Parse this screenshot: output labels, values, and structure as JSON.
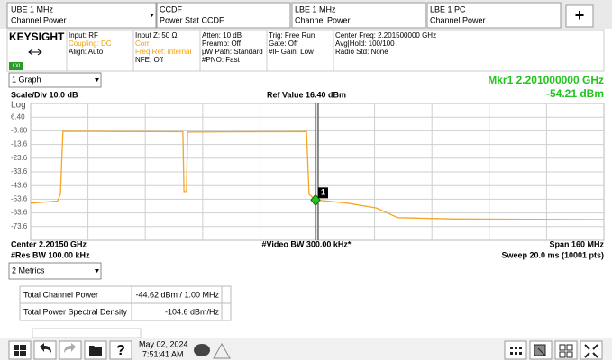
{
  "tabs": [
    {
      "line1": "UBE 1 MHz",
      "line2": "Channel Power"
    },
    {
      "line1": "CCDF",
      "line2": "Power Stat CCDF"
    },
    {
      "line1": "LBE 1 MHz",
      "line2": "Channel Power"
    },
    {
      "line1": "LBE 1 PC",
      "line2": "Channel Power"
    }
  ],
  "add_tab": "+",
  "brand": "KEYSIGHT",
  "lxi": "LXI",
  "settings": [
    [
      "Input: RF",
      "Coupling: DC",
      "Align: Auto"
    ],
    [
      "Input Z: 50 Ω",
      "Corr",
      "Freq Ref: Internal",
      "NFE: Off"
    ],
    [
      "Atten: 10 dB",
      "Preamp: Off",
      "µW Path: Standard",
      "#PNO: Fast"
    ],
    [
      "Trig: Free Run",
      "Gate: Off",
      "#IF Gain: Low"
    ],
    [
      "Center Freq: 2.201500000 GHz",
      "Avg|Hold: 100/100",
      "Radio Std: None"
    ]
  ],
  "graph": {
    "selector": "1 Graph",
    "marker_freq": "Mkr1  2.201000000 GHz",
    "scale": "Scale/Div 10.0 dB",
    "ref": "Ref Value 16.40 dBm",
    "scale_type": "Log",
    "center": "Center 2.20150 GHz",
    "video_bw": "#Video BW 300.00 kHz*",
    "span": "Span 160 MHz",
    "res_bw": "#Res BW 100.00 kHz",
    "sweep": "Sweep 20.0 ms (10001 pts)"
  },
  "chart_data": {
    "type": "line",
    "color": "#f5a623",
    "x": [
      2.1215,
      2.129,
      2.1298,
      2.1305,
      2.164,
      2.1643,
      2.165,
      2.1653,
      2.1985,
      2.1992,
      2.201,
      2.21,
      2.218,
      2.224,
      2.24,
      2.2815
    ],
    "values": [
      -56.5,
      -55,
      -50,
      -4,
      -4.3,
      -48,
      -48,
      -4.5,
      -4.2,
      -50,
      -54.21,
      -56.5,
      -60,
      -67,
      -68,
      -68.5
    ],
    "xlim": [
      2.1215,
      2.2815
    ],
    "ylim": [
      -83.6,
      16.4
    ],
    "yticks": [
      {
        "value": 6.4,
        "label": "6.40"
      },
      {
        "value": -3.6,
        "label": "-3.60"
      },
      -13.6,
      -23.6,
      -33.6,
      -43.6,
      -53.6,
      -63.6,
      -73.6
    ],
    "grid": true,
    "marker": {
      "number": "1",
      "x": 2.201,
      "value": -54.21,
      "label": "-54.21 dBm"
    }
  },
  "metrics": {
    "selector": "2 Metrics",
    "rows": [
      [
        "Total Channel Power",
        "-44.62 dBm / 1.00 MHz"
      ],
      [
        "Total Power Spectral Density",
        "-104.6 dBm/Hz"
      ]
    ]
  },
  "taskbar": {
    "date": "May 02, 2024",
    "time": "7:51:41 AM"
  }
}
